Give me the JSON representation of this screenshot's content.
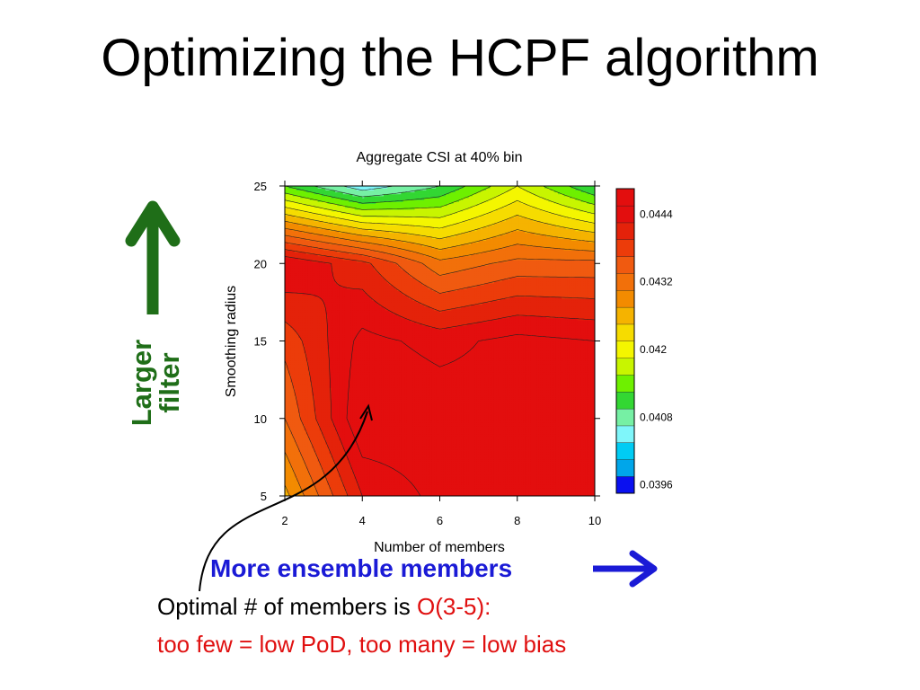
{
  "slide": {
    "title": "Optimizing the HCPF algorithm",
    "side_label_line1": "Larger",
    "side_label_line2": "filter",
    "members_label": "More ensemble members",
    "note_prefix": "Optimal # of members is ",
    "note_highlight": "O(3-5):",
    "note_line2": "too few = low PoD, too many = low bias",
    "colors": {
      "side_label": "#1f6e18",
      "members_label": "#1a1ad6",
      "highlight": "#e01010",
      "up_arrow": "#1f6e18",
      "right_arrow": "#1a1ad6"
    }
  },
  "chart_data": {
    "type": "heatmap",
    "subtype": "filled-contour",
    "title": "Aggregate CSI at 40% bin",
    "xlabel": "Number of members",
    "ylabel": "Smoothing radius",
    "x": [
      2,
      4,
      6,
      8,
      10
    ],
    "y": [
      5,
      10,
      15,
      20,
      25
    ],
    "xlim": [
      2,
      10
    ],
    "ylim": [
      5,
      25
    ],
    "x_ticks": [
      "2",
      "4",
      "6",
      "8",
      "10"
    ],
    "y_ticks": [
      "5",
      "10",
      "15",
      "20",
      "25"
    ],
    "grid": false,
    "z": [
      [
        0.0425,
        0.0441,
        0.0445,
        0.0444,
        0.0444
      ],
      [
        0.0432,
        0.0447,
        0.0446,
        0.0445,
        0.0444
      ],
      [
        0.0436,
        0.0445,
        0.0443,
        0.0445,
        0.0444
      ],
      [
        0.0444,
        0.0439,
        0.043,
        0.0433,
        0.0433
      ],
      [
        0.0411,
        0.0403,
        0.0408,
        0.0417,
        0.0408
      ]
    ],
    "colorbar": {
      "levels": [
        0.0393,
        0.0396,
        0.0399,
        0.0402,
        0.0405,
        0.0408,
        0.0411,
        0.0414,
        0.0417,
        0.042,
        0.0423,
        0.0426,
        0.0429,
        0.0432,
        0.0435,
        0.0438,
        0.0441,
        0.0444,
        0.0447
      ],
      "colors": [
        "#0a10f0",
        "#00a6ea",
        "#00ccf4",
        "#7ff6fa",
        "#76f0a4",
        "#33d733",
        "#6ef000",
        "#c8f500",
        "#f4f600",
        "#f6dc00",
        "#f5b300",
        "#f38b00",
        "#f2700a",
        "#f05a10",
        "#ec3c0a",
        "#e4220a",
        "#e30e0e",
        "#e30e0e"
      ],
      "labels": [
        "0.0396",
        "0.0408",
        "0.042",
        "0.0432",
        "0.0444"
      ]
    },
    "annotation": {
      "arrow_to": [
        4.2,
        10.3
      ],
      "text": "Optimal # of members is O(3-5):"
    }
  }
}
